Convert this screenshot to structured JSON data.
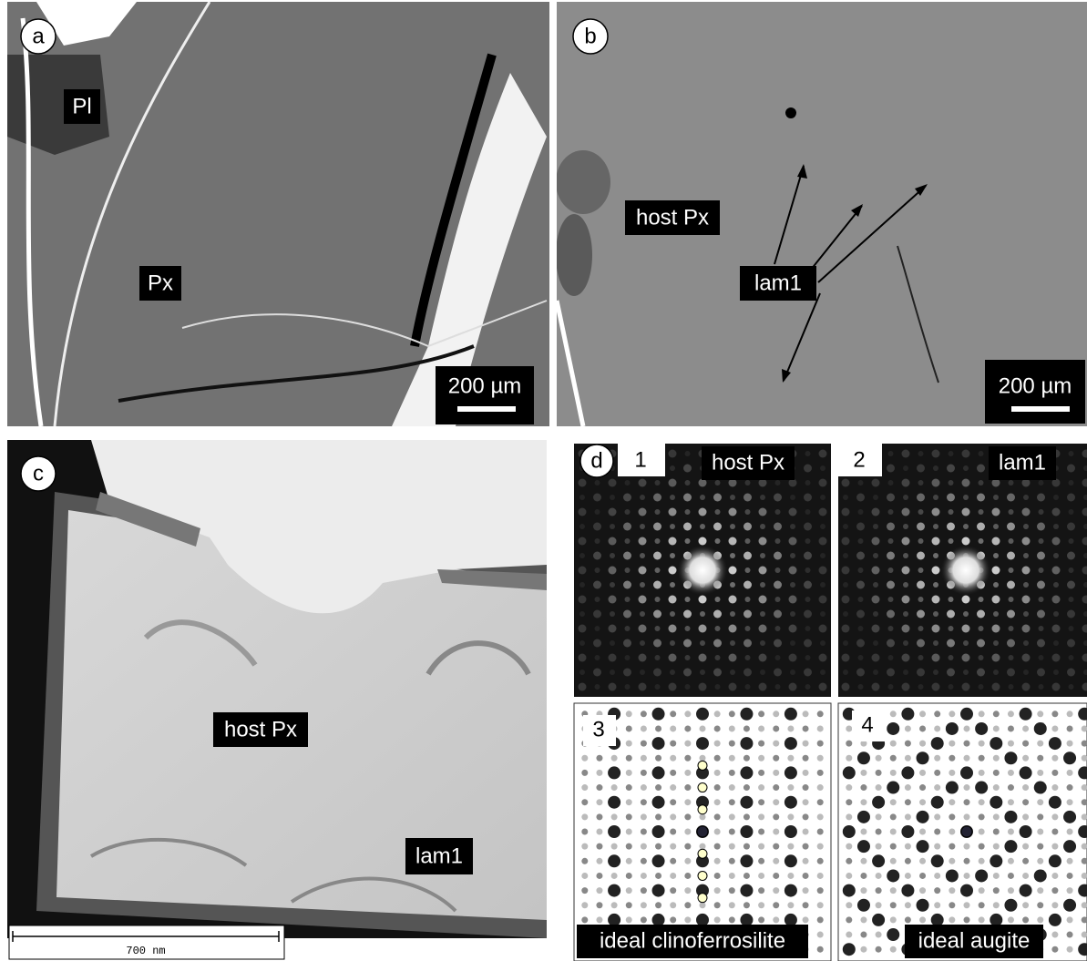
{
  "panels": [
    {
      "label": "a",
      "annotations": [
        "Pl",
        "Px"
      ],
      "scale_bar": "200 µm"
    },
    {
      "label": "b",
      "annotations": [
        "host Px",
        "lam1"
      ],
      "scale_bar": "200 µm"
    },
    {
      "label": "c",
      "annotations": [
        "host Px",
        "lam1"
      ],
      "scale_bar": "700 nm"
    },
    {
      "label": "d",
      "subpanels": [
        {
          "number": "1",
          "label": "host Px"
        },
        {
          "number": "2",
          "label": "lam1"
        },
        {
          "number": "3",
          "label": "ideal clinoferrosilite"
        },
        {
          "number": "4",
          "label": "ideal augite"
        }
      ]
    }
  ]
}
